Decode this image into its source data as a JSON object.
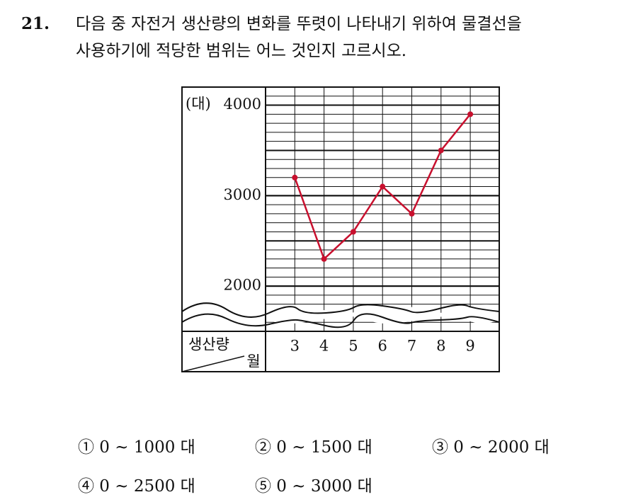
{
  "question": {
    "number": "21.",
    "lines": [
      "다음 중 자전거 생산량의 변화를 뚜렷이 나타내기 위하여 물결선을",
      "사용하기에 적당한 범위는 어느 것인지 고르시오."
    ]
  },
  "chart": {
    "type": "line",
    "y_unit": "(대)",
    "row_label": "생산량",
    "column_label": "월",
    "categories": [
      "3",
      "4",
      "5",
      "6",
      "7",
      "8",
      "9"
    ],
    "values": [
      3200,
      2300,
      2600,
      3100,
      2800,
      3500,
      3900
    ],
    "color": "#c8102e",
    "ylim": [
      1500,
      4200
    ],
    "yticks": [
      2000,
      3000,
      4000
    ],
    "minor_grid": 100,
    "major_grid": 500
  },
  "choices": [
    "① 0 ~ 1000 대",
    "② 0 ~ 1500 대",
    "③ 0 ~ 2000 대",
    "④ 0 ~ 2500 대",
    "⑤ 0 ~ 3000 대"
  ]
}
